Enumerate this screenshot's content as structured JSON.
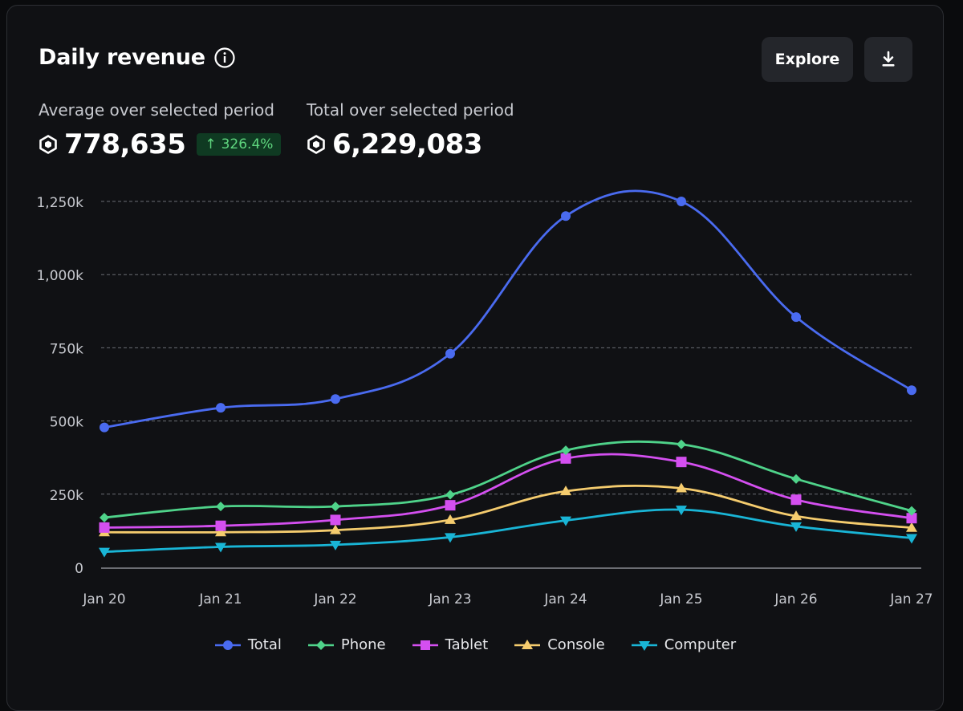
{
  "header": {
    "title": "Daily revenue",
    "explore_label": "Explore"
  },
  "stats": {
    "average_label": "Average over selected period",
    "average_value": "778,635",
    "change_value": "326.4%",
    "total_label": "Total over selected period",
    "total_value": "6,229,083"
  },
  "icons": {
    "info": "info-icon",
    "download": "download-icon",
    "currency": "robux-icon",
    "change": "arrow-up-icon"
  },
  "colors": {
    "total": "#4a6bf0",
    "phone": "#4fd38a",
    "tablet": "#d44ff0",
    "console": "#f5cc6e",
    "computer": "#19b5d6",
    "positive": "#5fd67f"
  },
  "chart_data": {
    "type": "line",
    "title": "Daily revenue",
    "xlabel": "",
    "ylabel": "",
    "categories": [
      "Jan 20",
      "Jan 21",
      "Jan 22",
      "Jan 23",
      "Jan 24",
      "Jan 25",
      "Jan 26",
      "Jan 27"
    ],
    "ylim": [
      0,
      1250000
    ],
    "yticks": [
      0,
      250000,
      500000,
      750000,
      1000000,
      1250000
    ],
    "ytick_labels": [
      "0",
      "250k",
      "500k",
      "750k",
      "1,000k",
      "1,250k"
    ],
    "grid": true,
    "legend_position": "bottom",
    "series": [
      {
        "name": "Total",
        "marker": "circle",
        "color": "#4a6bf0",
        "values": [
          478000,
          545000,
          575000,
          730000,
          1200000,
          1250000,
          855000,
          605000
        ]
      },
      {
        "name": "Phone",
        "marker": "diamond",
        "color": "#4fd38a",
        "values": [
          170000,
          208000,
          208000,
          248000,
          400000,
          420000,
          302000,
          193000
        ]
      },
      {
        "name": "Tablet",
        "marker": "square",
        "color": "#d44ff0",
        "values": [
          136000,
          142000,
          162000,
          212000,
          372000,
          360000,
          231000,
          168000
        ]
      },
      {
        "name": "Console",
        "marker": "triangle-up",
        "color": "#f5cc6e",
        "values": [
          120000,
          120000,
          127000,
          162000,
          260000,
          270000,
          175000,
          135000
        ]
      },
      {
        "name": "Computer",
        "marker": "triangle-down",
        "color": "#19b5d6",
        "values": [
          53000,
          70000,
          77000,
          103000,
          160000,
          197000,
          140000,
          100000
        ]
      }
    ]
  }
}
